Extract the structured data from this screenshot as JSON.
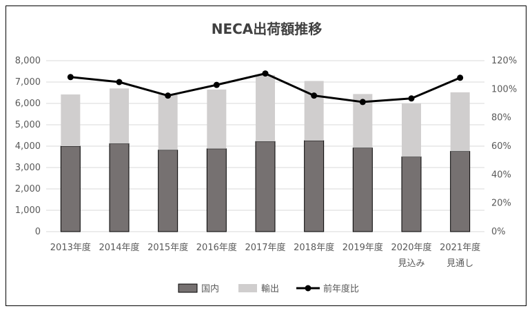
{
  "chart_data": {
    "type": "bar",
    "title": "NECA出荷額推移",
    "categories": [
      [
        "2013年度"
      ],
      [
        "2014年度"
      ],
      [
        "2015年度"
      ],
      [
        "2016年度"
      ],
      [
        "2017年度"
      ],
      [
        "2018年度"
      ],
      [
        "2019年度"
      ],
      [
        "2020年度",
        "見込み"
      ],
      [
        "2021年度",
        "見通し"
      ]
    ],
    "series": [
      {
        "name": "国内",
        "type": "stacked-bar",
        "color": "#767171",
        "values": [
          4000,
          4120,
          3820,
          3880,
          4220,
          4260,
          3920,
          3500,
          3760
        ]
      },
      {
        "name": "輸出",
        "type": "stacked-bar",
        "color": "#d0cece",
        "values": [
          2420,
          2580,
          2610,
          2770,
          3110,
          2790,
          2520,
          2500,
          2760
        ]
      },
      {
        "name": "前年度比",
        "type": "line",
        "axis": "right",
        "color": "#000000",
        "values": [
          108.5,
          105,
          95.5,
          103,
          111,
          95.5,
          91,
          93.5,
          108
        ]
      }
    ],
    "y_left": {
      "ylim": [
        0,
        8000
      ],
      "ticks": [
        "0",
        "1,000",
        "2,000",
        "3,000",
        "4,000",
        "5,000",
        "6,000",
        "7,000",
        "8,000"
      ]
    },
    "y_right": {
      "ylim": [
        0,
        120
      ],
      "ticks": [
        "0%",
        "20%",
        "40%",
        "60%",
        "80%",
        "100%",
        "120%"
      ]
    },
    "grid": true,
    "legend_position": "bottom"
  }
}
